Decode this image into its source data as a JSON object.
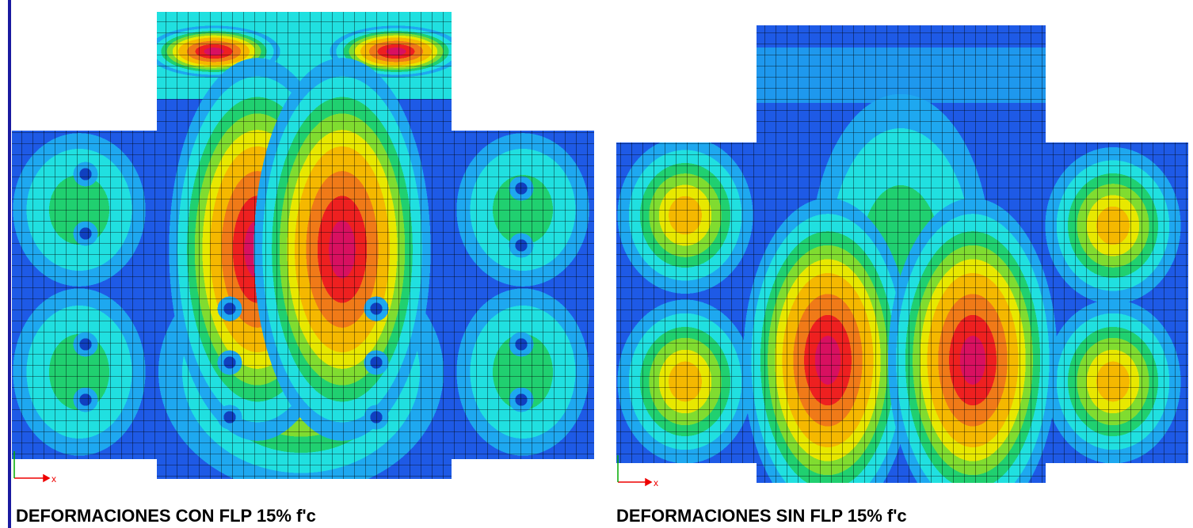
{
  "panels": [
    {
      "caption": "DEFORMACIONES CON FLP 15% f'c",
      "axis_label": "x"
    },
    {
      "caption": "DEFORMACIONES SIN FLP 15% f'c",
      "axis_label": "x"
    }
  ]
}
